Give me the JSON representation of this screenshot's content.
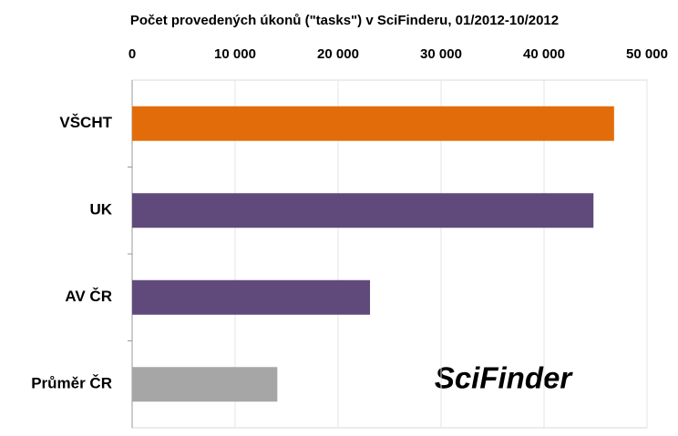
{
  "chart_data": {
    "type": "barh",
    "title": "Počet provedených úkonů (\"tasks\") v SciFinderu, 01/2012-10/2012",
    "categories": [
      "VŠCHT",
      "UK",
      "AV ČR",
      "Průměr ČR"
    ],
    "values": [
      46800,
      44800,
      23100,
      14100
    ],
    "colors": [
      "#e36c0a",
      "#604a7b",
      "#604a7b",
      "#a6a6a6"
    ],
    "xlim": [
      0,
      50000
    ],
    "xticks": [
      0,
      {
        "value": 10000,
        "label": "10 000"
      },
      {
        "value": 20000,
        "label": "20 000"
      },
      {
        "value": 30000,
        "label": "30 000"
      },
      {
        "value": 40000,
        "label": "40 000"
      },
      {
        "value": 50000,
        "label": "50 000"
      }
    ],
    "grid": true,
    "annotation": "SciFinder"
  }
}
